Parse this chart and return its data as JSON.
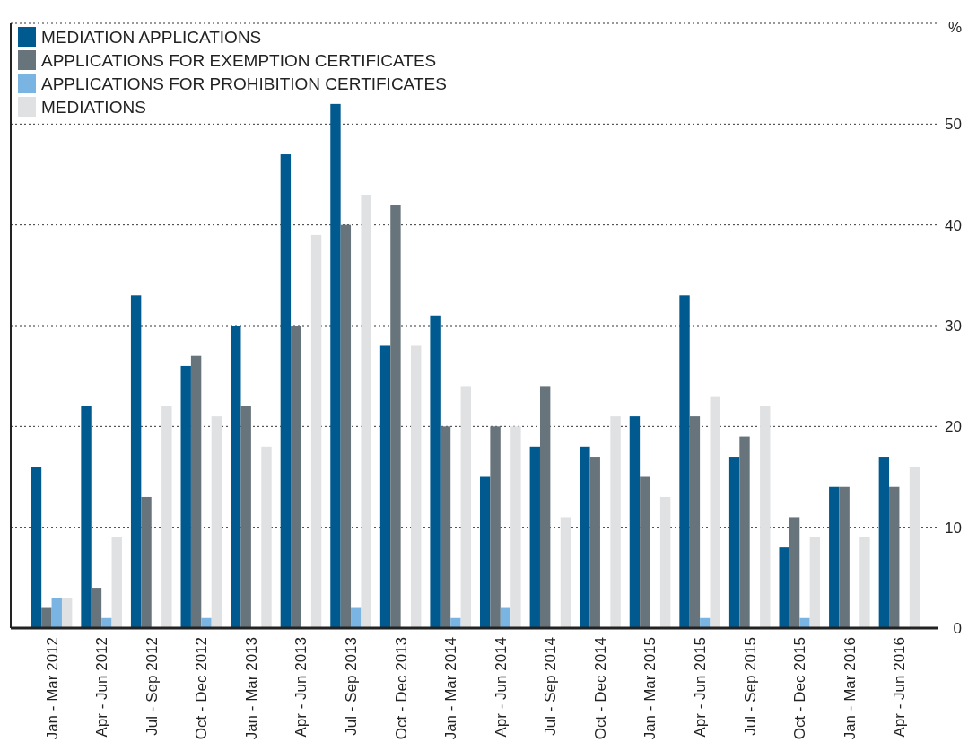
{
  "chart_data": {
    "type": "bar",
    "ylabel": "%",
    "categories": [
      "Jan - Mar 2012",
      "Apr - Jun 2012",
      "Jul - Sep 2012",
      "Oct - Dec 2012",
      "Jan - Mar 2013",
      "Apr - Jun 2013",
      "Jul - Sep 2013",
      "Oct - Dec 2013",
      "Jan - Mar 2014",
      "Apr - Jun 2014",
      "Jul - Sep 2014",
      "Oct - Dec 2014",
      "Jan - Mar 2015",
      "Apr - Jun 2015",
      "Jul - Sep 2015",
      "Oct - Dec 2015",
      "Jan - Mar 2016",
      "Apr - Jun 2016"
    ],
    "series": [
      {
        "name": "MEDIATION APPLICATIONS",
        "color": "#005a8f",
        "values": [
          16,
          22,
          33,
          26,
          30,
          47,
          52,
          28,
          31,
          15,
          18,
          18,
          21,
          33,
          17,
          8,
          14,
          17
        ]
      },
      {
        "name": "APPLICATIONS FOR EXEMPTION CERTIFICATES",
        "color": "#68747b",
        "values": [
          2,
          4,
          13,
          27,
          22,
          30,
          40,
          42,
          20,
          20,
          24,
          17,
          15,
          21,
          19,
          11,
          14,
          14
        ]
      },
      {
        "name": "APPLICATIONS FOR PROHIBITION CERTIFICATES",
        "color": "#7ab4e2",
        "values": [
          3,
          1,
          0,
          1,
          0,
          0,
          2,
          0,
          1,
          2,
          0,
          0,
          0,
          1,
          0,
          1,
          0,
          0
        ]
      },
      {
        "name": "MEDIATIONS",
        "color": "#e0e1e3",
        "values": [
          3,
          9,
          22,
          21,
          18,
          39,
          43,
          28,
          24,
          20,
          11,
          21,
          13,
          23,
          22,
          9,
          9,
          16
        ]
      }
    ],
    "ylim": [
      0,
      60
    ],
    "yticks": [
      0,
      10,
      20,
      30,
      40,
      50,
      {
        "value": 60,
        "label": null
      }
    ],
    "grid": "y",
    "legend": "top left"
  }
}
